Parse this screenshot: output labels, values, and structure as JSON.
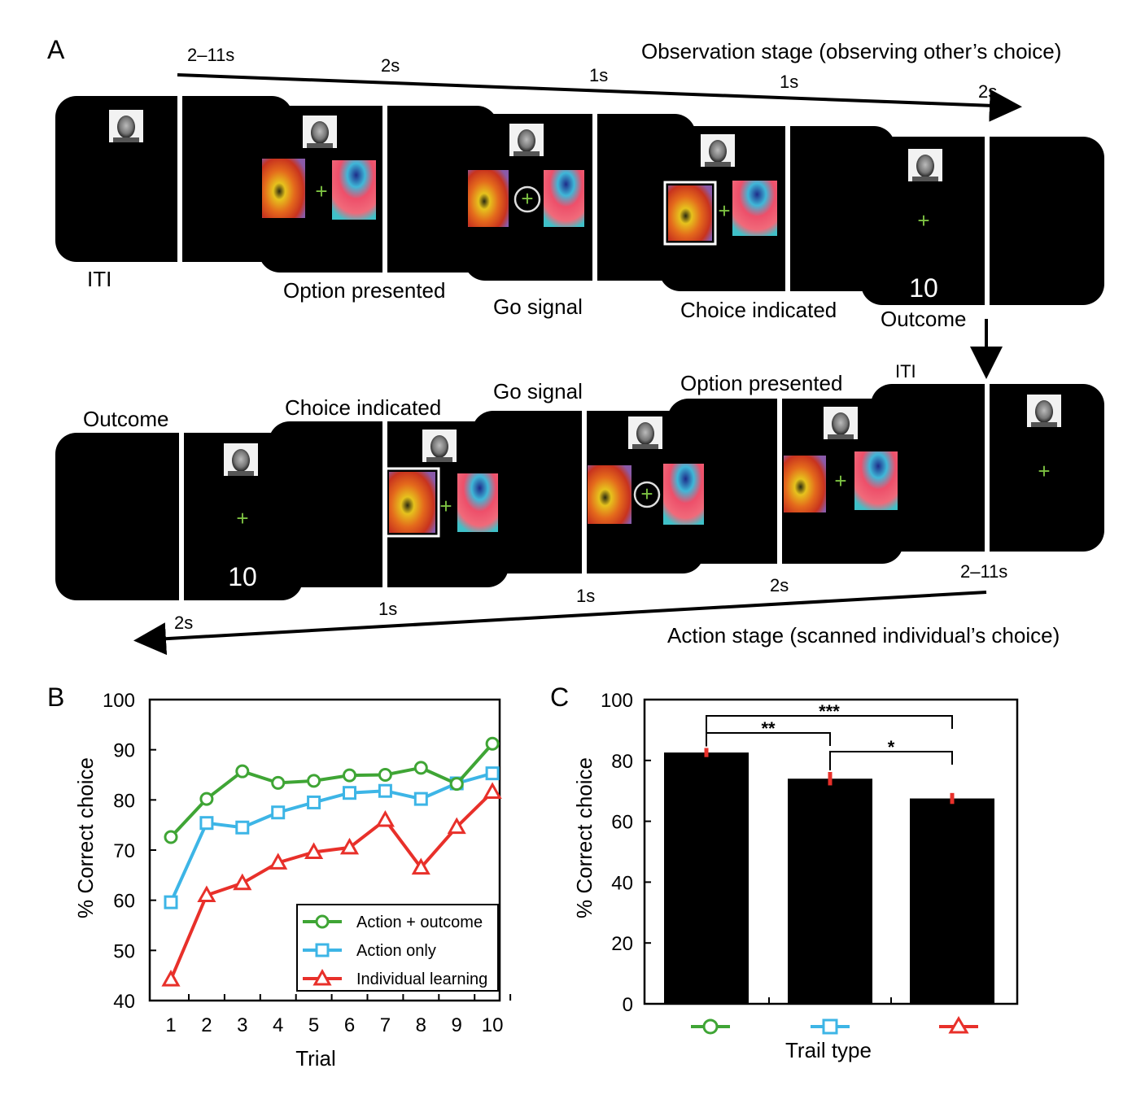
{
  "panel_labels": {
    "a": "A",
    "b": "B",
    "c": "C"
  },
  "panel_a": {
    "observation_stage": "Observation stage (observing other’s choice)",
    "action_stage": "Action stage (scanned individual’s choice)",
    "top_timings": [
      "2–11s",
      "2s",
      "1s",
      "1s",
      "2s"
    ],
    "bottom_timings": [
      "2–11s",
      "2s",
      "1s",
      "1s",
      "2s"
    ],
    "top_events": [
      "ITI",
      "Option presented",
      "Go signal",
      "Choice indicated",
      "Outcome"
    ],
    "bottom_events": [
      "ITI",
      "Option presented",
      "Go signal",
      "Choice indicated",
      "Outcome"
    ],
    "outcome_value": "10",
    "cross_color": "#7dc242"
  },
  "chart_data": [
    {
      "type": "line",
      "title": "",
      "xlabel": "Trial",
      "ylabel": "% Correct choice",
      "x": [
        1,
        2,
        3,
        4,
        5,
        6,
        7,
        8,
        9,
        10
      ],
      "x_tick_labels": [
        "1",
        "2",
        "3",
        "4",
        "5",
        "6",
        "7",
        "8",
        "9",
        "10"
      ],
      "ylim": [
        40,
        100
      ],
      "y_ticks": [
        "40",
        "50",
        "60",
        "70",
        "80",
        "90",
        "100"
      ],
      "legend_position": "bottom-right",
      "series": [
        {
          "name": "Action + outcome",
          "marker": "circle",
          "color": "#3fa535",
          "values": [
            72.6,
            80.2,
            85.7,
            83.4,
            83.8,
            84.9,
            85.0,
            86.4,
            83.2,
            91.2
          ]
        },
        {
          "name": "Action only",
          "marker": "square",
          "color": "#3db5e6",
          "values": [
            59.6,
            75.4,
            74.5,
            77.5,
            79.5,
            81.4,
            81.8,
            80.2,
            83.3,
            85.3
          ]
        },
        {
          "name": "Individual learning",
          "marker": "triangle",
          "color": "#e8302a",
          "values": [
            44.2,
            61.0,
            63.4,
            67.5,
            69.6,
            70.5,
            76.0,
            66.5,
            74.6,
            81.6
          ]
        }
      ]
    },
    {
      "type": "bar",
      "title": "",
      "xlabel": "Trail type",
      "ylabel": "% Correct choice",
      "categories": [
        "Action + outcome",
        "Action only",
        "Individual learning"
      ],
      "category_markers": [
        {
          "marker": "circle",
          "color": "#3fa535"
        },
        {
          "marker": "square",
          "color": "#3db5e6"
        },
        {
          "marker": "triangle",
          "color": "#e8302a"
        }
      ],
      "values": [
        82.6,
        74.0,
        67.5
      ],
      "errors": [
        1.5,
        2.2,
        1.8
      ],
      "bar_color": "#000000",
      "error_color": "#e8302a",
      "ylim": [
        0,
        100
      ],
      "y_ticks": [
        "0",
        "20",
        "40",
        "60",
        "80",
        "100"
      ],
      "significance": [
        {
          "from": 0,
          "to": 2,
          "label": "***"
        },
        {
          "from": 0,
          "to": 1,
          "label": "**"
        },
        {
          "from": 1,
          "to": 2,
          "label": "*"
        }
      ]
    }
  ]
}
